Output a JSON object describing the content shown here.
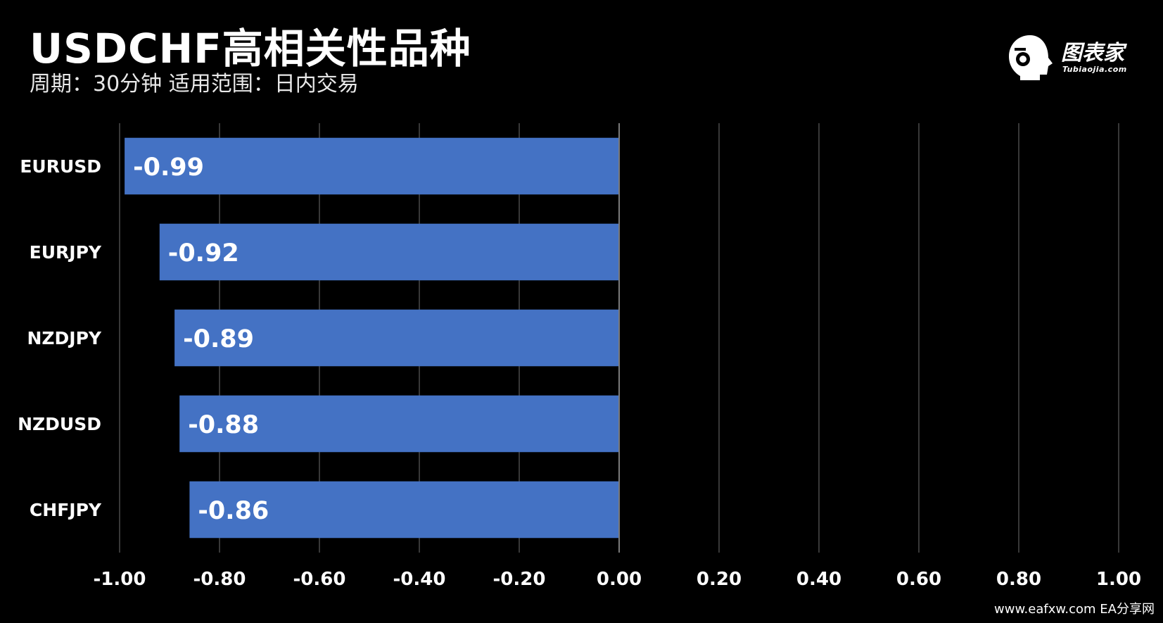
{
  "header": {
    "title": "USDCHF高相关性品种",
    "subtitle": "周期：30分钟  适用范围：日内交易"
  },
  "logo": {
    "name": "图表家",
    "site": "Tubiaojia.com"
  },
  "footer": {
    "watermark": "www.eafxw.com   EA分享网"
  },
  "colors": {
    "bar": "#4472C4",
    "background": "#000000",
    "grid": "#4a4a4a"
  },
  "chart_data": {
    "type": "bar",
    "orientation": "horizontal",
    "categories": [
      "EURUSD",
      "EURJPY",
      "NZDJPY",
      "NZDUSD",
      "CHFJPY"
    ],
    "values": [
      -0.99,
      -0.92,
      -0.89,
      -0.88,
      -0.86
    ],
    "data_labels": [
      "-0.99",
      "-0.92",
      "-0.89",
      "-0.88",
      "-0.86"
    ],
    "xlim": [
      -1.0,
      1.0
    ],
    "x_ticks": [
      "-1.00",
      "-0.80",
      "-0.60",
      "-0.40",
      "-0.20",
      "0.00",
      "0.20",
      "0.40",
      "0.60",
      "0.80",
      "1.00"
    ],
    "grid": true,
    "legend": "none"
  }
}
